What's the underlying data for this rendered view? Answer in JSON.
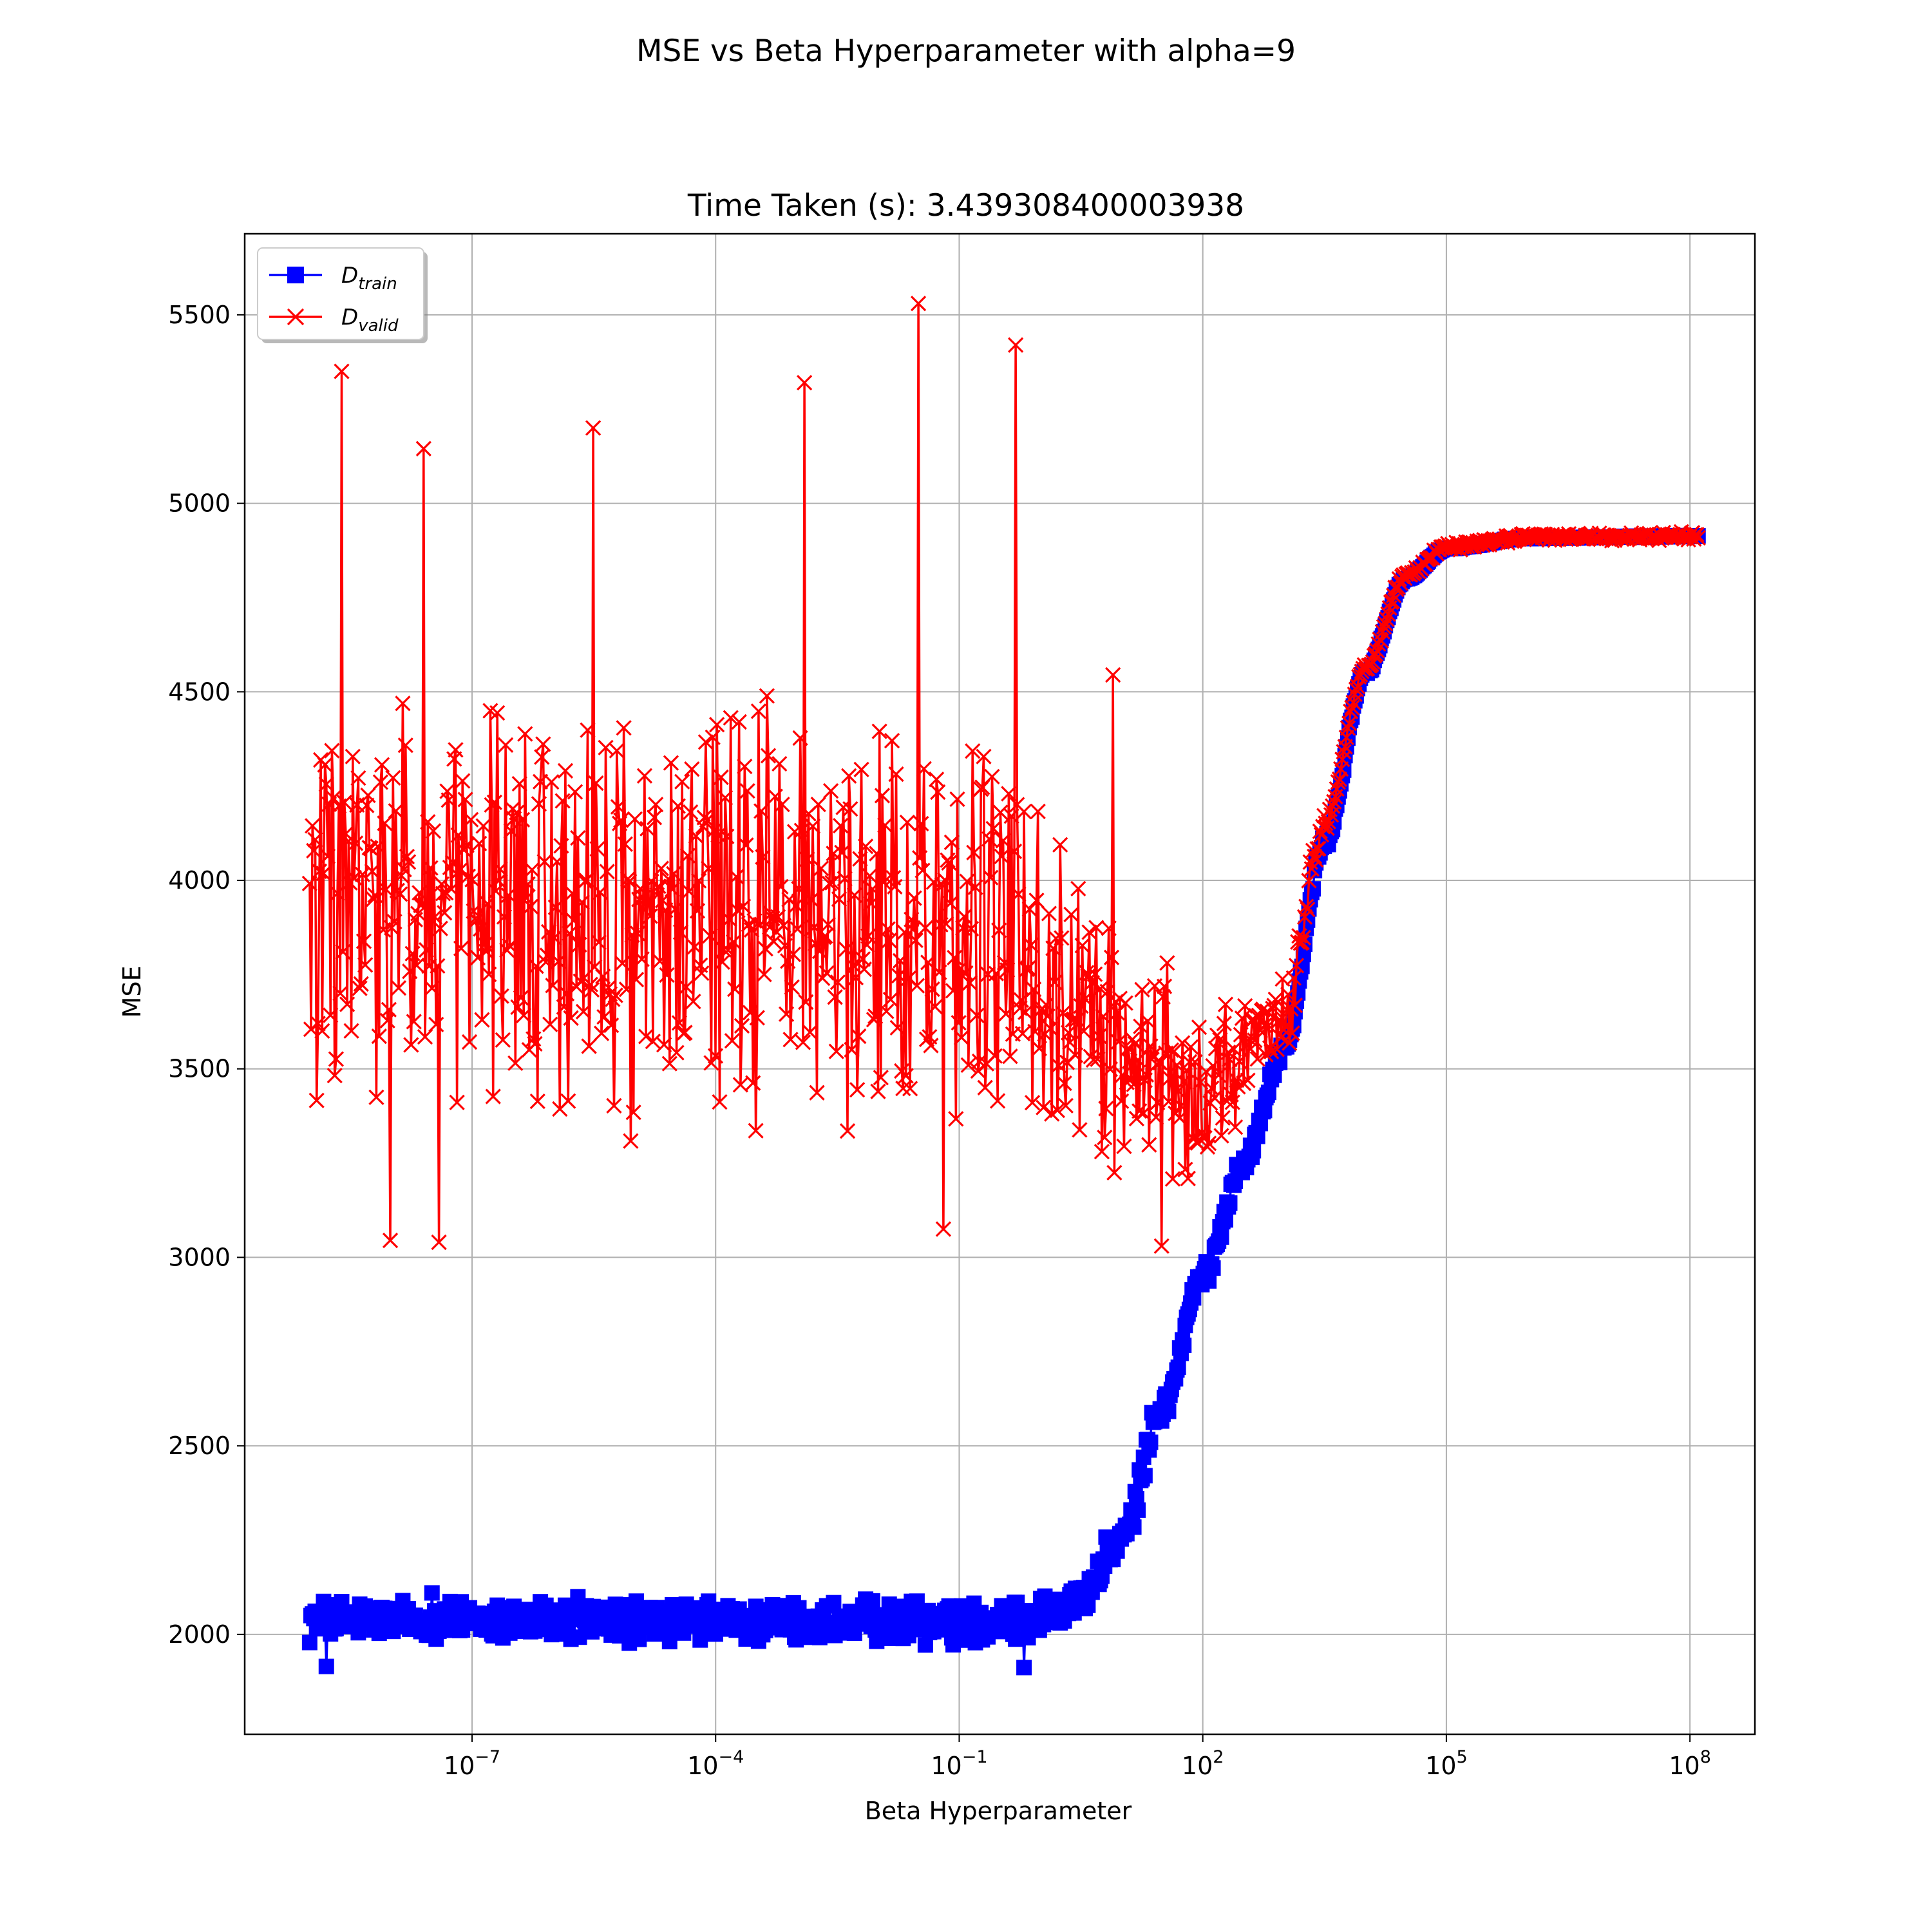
{
  "figure": {
    "suptitle": "MSE vs Beta Hyperparameter with alpha=9"
  },
  "chart_data": {
    "type": "line",
    "title": "Time Taken (s): 3.439308400003938",
    "xlabel": "Beta Hyperparameter",
    "ylabel": "MSE",
    "xscale": "log",
    "xlim_log10": [
      -9.8,
      8.8
    ],
    "ylim": [
      1735,
      5715
    ],
    "grid": true,
    "legend_position": "upper-left",
    "x_ticks": [
      {
        "exp": -7,
        "base": "10",
        "sup": "−7"
      },
      {
        "exp": -4,
        "base": "10",
        "sup": "−4"
      },
      {
        "exp": -1,
        "base": "10",
        "sup": "−1"
      },
      {
        "exp": 2,
        "base": "10",
        "sup": "2"
      },
      {
        "exp": 5,
        "base": "10",
        "sup": "5"
      },
      {
        "exp": 8,
        "base": "10",
        "sup": "8"
      }
    ],
    "y_ticks": [
      2000,
      2500,
      3000,
      3500,
      4000,
      4500,
      5000,
      5500
    ],
    "x_range_log10": [
      -9,
      8.1
    ],
    "n_points": 1000,
    "series": [
      {
        "name_base": "D",
        "name_sub": "train",
        "color": "#0000ff",
        "marker": "square",
        "description": "flat around 2000 up to beta ~1, sigmoid rise to plateau ~4913",
        "anchors": [
          {
            "x_log10": -9,
            "y": 2040
          },
          {
            "x_log10": -6,
            "y": 2035
          },
          {
            "x_log10": -3,
            "y": 2032
          },
          {
            "x_log10": -1,
            "y": 2030
          },
          {
            "x_log10": 0,
            "y": 2050
          },
          {
            "x_log10": 0.5,
            "y": 2100
          },
          {
            "x_log10": 1,
            "y": 2250
          },
          {
            "x_log10": 1.5,
            "y": 2600
          },
          {
            "x_log10": 2,
            "y": 2950
          },
          {
            "x_log10": 2.5,
            "y": 3250
          },
          {
            "x_log10": 3,
            "y": 3550
          },
          {
            "x_log10": 3.5,
            "y": 4100
          },
          {
            "x_log10": 4,
            "y": 4550
          },
          {
            "x_log10": 4.5,
            "y": 4800
          },
          {
            "x_log10": 5,
            "y": 4880
          },
          {
            "x_log10": 6,
            "y": 4908
          },
          {
            "x_log10": 8.1,
            "y": 4913
          }
        ],
        "noise_amplitude": 40,
        "outliers": [
          {
            "x_log10": -8.8,
            "y": 1915
          },
          {
            "x_log10": -0.2,
            "y": 1912
          },
          {
            "x_log10": -7.5,
            "y": 2110
          },
          {
            "x_log10": -5.7,
            "y": 2100
          }
        ]
      },
      {
        "name_base": "D",
        "name_sub": "valid",
        "color": "#ff0000",
        "marker": "x",
        "description": "noisy around 3900 until beta ~10, dips to ~3450 near beta 100, then rises to plateau ~4913",
        "anchors": [
          {
            "x_log10": -9,
            "y": 3920
          },
          {
            "x_log10": -6,
            "y": 3900
          },
          {
            "x_log10": -3,
            "y": 3900
          },
          {
            "x_log10": -1,
            "y": 3880
          },
          {
            "x_log10": 0,
            "y": 3750
          },
          {
            "x_log10": 1,
            "y": 3550
          },
          {
            "x_log10": 2,
            "y": 3450
          },
          {
            "x_log10": 2.5,
            "y": 3500
          },
          {
            "x_log10": 3,
            "y": 3650
          },
          {
            "x_log10": 3.5,
            "y": 4150
          },
          {
            "x_log10": 4,
            "y": 4560
          },
          {
            "x_log10": 4.5,
            "y": 4810
          },
          {
            "x_log10": 5,
            "y": 4885
          },
          {
            "x_log10": 6,
            "y": 4910
          },
          {
            "x_log10": 8.1,
            "y": 4913
          }
        ],
        "noise_amplitude": 380,
        "outliers": [
          {
            "x_log10": -8.6,
            "y": 5350
          },
          {
            "x_log10": -1.5,
            "y": 5530
          },
          {
            "x_log10": -0.3,
            "y": 5420
          },
          {
            "x_log10": -2.9,
            "y": 5320
          },
          {
            "x_log10": -5.5,
            "y": 5200
          },
          {
            "x_log10": -7.6,
            "y": 5145
          },
          {
            "x_log10": -8.0,
            "y": 3045
          },
          {
            "x_log10": -7.4,
            "y": 3040
          },
          {
            "x_log10": -1.2,
            "y": 3075
          },
          {
            "x_log10": 1.5,
            "y": 3030
          },
          {
            "x_log10": 0.9,
            "y": 4545
          }
        ]
      }
    ]
  }
}
